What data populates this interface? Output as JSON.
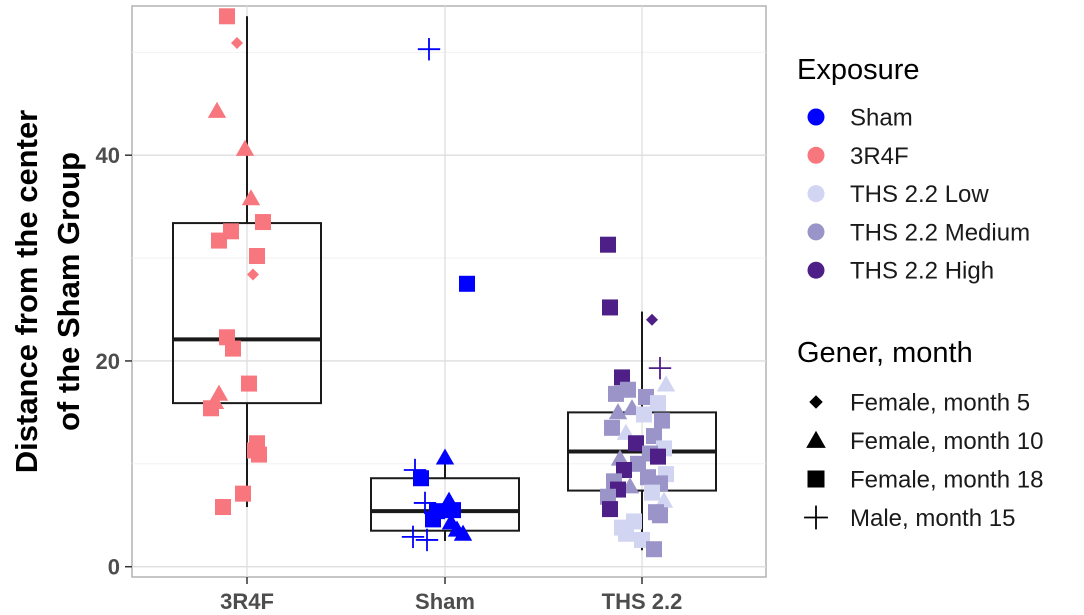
{
  "chart_data": {
    "type": "box",
    "ylabel_lines": [
      "Distance from the center",
      "of the Sham Group"
    ],
    "xlabel": "",
    "ylim": [
      -1,
      54.5
    ],
    "yticks": [
      0,
      20,
      40
    ],
    "grid": true,
    "categories": [
      "3R4F",
      "Sham",
      "THS 2.2"
    ],
    "boxes": [
      {
        "category": "3R4F",
        "q1": 15.9,
        "median": 22.1,
        "q3": 33.4,
        "whisker_low": 5.8,
        "whisker_high": 53.5
      },
      {
        "category": "Sham",
        "q1": 3.5,
        "median": 5.4,
        "q3": 8.6,
        "whisker_low": 2.5,
        "whisker_high": 10.6
      },
      {
        "category": "THS 2.2",
        "q1": 7.4,
        "median": 11.2,
        "q3": 15.0,
        "whisker_low": 1.6,
        "whisker_high": 24.8
      }
    ],
    "exposure_legend": {
      "title": "Exposure",
      "items": [
        {
          "label": "Sham",
          "color": "#0000ff"
        },
        {
          "label": "3R4F",
          "color": "#f8767d"
        },
        {
          "label": "THS 2.2 Low",
          "color": "#d2d5f1"
        },
        {
          "label": "THS 2.2 Medium",
          "color": "#9a94c8"
        },
        {
          "label": "THS 2.2 High",
          "color": "#4e1f86"
        }
      ]
    },
    "shape_legend": {
      "title": "Gener, month",
      "items": [
        {
          "label": "Female, month 5",
          "shape": "diamond"
        },
        {
          "label": "Female, month 10",
          "shape": "triangle"
        },
        {
          "label": "Female, month 18",
          "shape": "square"
        },
        {
          "label": "Male, month 15",
          "shape": "plus"
        }
      ]
    },
    "points": [
      {
        "cat": 0,
        "jitter": -0.1,
        "y": 53.5,
        "exposure": "3R4F",
        "shape": "square"
      },
      {
        "cat": 0,
        "jitter": -0.05,
        "y": 50.9,
        "exposure": "3R4F",
        "shape": "diamond"
      },
      {
        "cat": 0,
        "jitter": -0.15,
        "y": 44.3,
        "exposure": "3R4F",
        "shape": "triangle"
      },
      {
        "cat": 0,
        "jitter": -0.01,
        "y": 40.6,
        "exposure": "3R4F",
        "shape": "triangle"
      },
      {
        "cat": 0,
        "jitter": 0.02,
        "y": 35.8,
        "exposure": "3R4F",
        "shape": "triangle"
      },
      {
        "cat": 0,
        "jitter": 0.08,
        "y": 33.5,
        "exposure": "3R4F",
        "shape": "square"
      },
      {
        "cat": 0,
        "jitter": -0.08,
        "y": 32.6,
        "exposure": "3R4F",
        "shape": "square"
      },
      {
        "cat": 0,
        "jitter": -0.14,
        "y": 31.7,
        "exposure": "3R4F",
        "shape": "square"
      },
      {
        "cat": 0,
        "jitter": 0.05,
        "y": 30.2,
        "exposure": "3R4F",
        "shape": "square"
      },
      {
        "cat": 0,
        "jitter": 0.03,
        "y": 28.4,
        "exposure": "3R4F",
        "shape": "diamond"
      },
      {
        "cat": 0,
        "jitter": -0.1,
        "y": 22.3,
        "exposure": "3R4F",
        "shape": "square"
      },
      {
        "cat": 0,
        "jitter": -0.07,
        "y": 21.2,
        "exposure": "3R4F",
        "shape": "square"
      },
      {
        "cat": 0,
        "jitter": 0.01,
        "y": 17.8,
        "exposure": "3R4F",
        "shape": "square"
      },
      {
        "cat": 0,
        "jitter": -0.14,
        "y": 16.8,
        "exposure": "3R4F",
        "shape": "triangle"
      },
      {
        "cat": 0,
        "jitter": -0.16,
        "y": 16.0,
        "exposure": "3R4F",
        "shape": "triangle"
      },
      {
        "cat": 0,
        "jitter": -0.18,
        "y": 15.4,
        "exposure": "3R4F",
        "shape": "square"
      },
      {
        "cat": 0,
        "jitter": 0.05,
        "y": 12.0,
        "exposure": "3R4F",
        "shape": "square"
      },
      {
        "cat": 0,
        "jitter": 0.04,
        "y": 11.3,
        "exposure": "3R4F",
        "shape": "square"
      },
      {
        "cat": 0,
        "jitter": 0.06,
        "y": 10.9,
        "exposure": "3R4F",
        "shape": "square"
      },
      {
        "cat": 0,
        "jitter": -0.02,
        "y": 7.1,
        "exposure": "3R4F",
        "shape": "square"
      },
      {
        "cat": 0,
        "jitter": -0.12,
        "y": 5.8,
        "exposure": "3R4F",
        "shape": "square"
      },
      {
        "cat": 1,
        "jitter": -0.08,
        "y": 50.3,
        "exposure": "Sham",
        "shape": "plus"
      },
      {
        "cat": 1,
        "jitter": 0.11,
        "y": 27.5,
        "exposure": "Sham",
        "shape": "square"
      },
      {
        "cat": 1,
        "jitter": 0.0,
        "y": 10.6,
        "exposure": "Sham",
        "shape": "triangle"
      },
      {
        "cat": 1,
        "jitter": -0.15,
        "y": 9.4,
        "exposure": "Sham",
        "shape": "plus"
      },
      {
        "cat": 1,
        "jitter": -0.12,
        "y": 8.6,
        "exposure": "Sham",
        "shape": "square"
      },
      {
        "cat": 1,
        "jitter": -0.1,
        "y": 6.2,
        "exposure": "Sham",
        "shape": "plus"
      },
      {
        "cat": 1,
        "jitter": 0.02,
        "y": 6.4,
        "exposure": "Sham",
        "shape": "triangle"
      },
      {
        "cat": 1,
        "jitter": -0.04,
        "y": 5.4,
        "exposure": "Sham",
        "shape": "square"
      },
      {
        "cat": 1,
        "jitter": 0.04,
        "y": 5.5,
        "exposure": "Sham",
        "shape": "square"
      },
      {
        "cat": 1,
        "jitter": -0.06,
        "y": 4.6,
        "exposure": "Sham",
        "shape": "square"
      },
      {
        "cat": 1,
        "jitter": 0.03,
        "y": 4.3,
        "exposure": "Sham",
        "shape": "triangle"
      },
      {
        "cat": 1,
        "jitter": 0.06,
        "y": 3.6,
        "exposure": "Sham",
        "shape": "triangle"
      },
      {
        "cat": 1,
        "jitter": 0.09,
        "y": 3.2,
        "exposure": "Sham",
        "shape": "triangle"
      },
      {
        "cat": 1,
        "jitter": -0.16,
        "y": 2.9,
        "exposure": "Sham",
        "shape": "plus"
      },
      {
        "cat": 1,
        "jitter": -0.09,
        "y": 2.6,
        "exposure": "Sham",
        "shape": "plus"
      },
      {
        "cat": 2,
        "jitter": -0.17,
        "y": 31.3,
        "exposure": "THS 2.2 High",
        "shape": "square"
      },
      {
        "cat": 2,
        "jitter": -0.16,
        "y": 25.2,
        "exposure": "THS 2.2 High",
        "shape": "square"
      },
      {
        "cat": 2,
        "jitter": 0.05,
        "y": 24.0,
        "exposure": "THS 2.2 High",
        "shape": "diamond"
      },
      {
        "cat": 2,
        "jitter": 0.09,
        "y": 19.3,
        "exposure": "THS 2.2 High",
        "shape": "plus"
      },
      {
        "cat": 2,
        "jitter": -0.1,
        "y": 18.4,
        "exposure": "THS 2.2 High",
        "shape": "square"
      },
      {
        "cat": 2,
        "jitter": 0.12,
        "y": 17.7,
        "exposure": "THS 2.2 Low",
        "shape": "triangle"
      },
      {
        "cat": 2,
        "jitter": -0.07,
        "y": 17.2,
        "exposure": "THS 2.2 Medium",
        "shape": "square"
      },
      {
        "cat": 2,
        "jitter": -0.13,
        "y": 16.8,
        "exposure": "THS 2.2 Medium",
        "shape": "square"
      },
      {
        "cat": 2,
        "jitter": 0.02,
        "y": 16.5,
        "exposure": "THS 2.2 Medium",
        "shape": "square"
      },
      {
        "cat": 2,
        "jitter": 0.08,
        "y": 15.9,
        "exposure": "THS 2.2 Low",
        "shape": "square"
      },
      {
        "cat": 2,
        "jitter": -0.05,
        "y": 15.4,
        "exposure": "THS 2.2 Medium",
        "shape": "triangle"
      },
      {
        "cat": 2,
        "jitter": -0.12,
        "y": 15.0,
        "exposure": "THS 2.2 Medium",
        "shape": "triangle"
      },
      {
        "cat": 2,
        "jitter": 0.01,
        "y": 14.8,
        "exposure": "THS 2.2 Low",
        "shape": "square"
      },
      {
        "cat": 2,
        "jitter": 0.1,
        "y": 14.2,
        "exposure": "THS 2.2 Medium",
        "shape": "square"
      },
      {
        "cat": 2,
        "jitter": -0.15,
        "y": 13.5,
        "exposure": "THS 2.2 Medium",
        "shape": "square"
      },
      {
        "cat": 2,
        "jitter": -0.08,
        "y": 13.0,
        "exposure": "THS 2.2 Low",
        "shape": "triangle"
      },
      {
        "cat": 2,
        "jitter": 0.06,
        "y": 12.7,
        "exposure": "THS 2.2 Medium",
        "shape": "square"
      },
      {
        "cat": 2,
        "jitter": -0.03,
        "y": 12.0,
        "exposure": "THS 2.2 High",
        "shape": "square"
      },
      {
        "cat": 2,
        "jitter": 0.11,
        "y": 11.5,
        "exposure": "THS 2.2 Low",
        "shape": "square"
      },
      {
        "cat": 2,
        "jitter": 0.04,
        "y": 11.0,
        "exposure": "THS 2.2 Medium",
        "shape": "square"
      },
      {
        "cat": 2,
        "jitter": -0.11,
        "y": 10.5,
        "exposure": "THS 2.2 Medium",
        "shape": "triangle"
      },
      {
        "cat": 2,
        "jitter": 0.08,
        "y": 10.7,
        "exposure": "THS 2.2 High",
        "shape": "square"
      },
      {
        "cat": 2,
        "jitter": -0.02,
        "y": 10.0,
        "exposure": "THS 2.2 Medium",
        "shape": "square"
      },
      {
        "cat": 2,
        "jitter": -0.09,
        "y": 9.4,
        "exposure": "THS 2.2 High",
        "shape": "square"
      },
      {
        "cat": 2,
        "jitter": 0.12,
        "y": 9.0,
        "exposure": "THS 2.2 Low",
        "shape": "square"
      },
      {
        "cat": 2,
        "jitter": 0.03,
        "y": 8.7,
        "exposure": "THS 2.2 Medium",
        "shape": "square"
      },
      {
        "cat": 2,
        "jitter": -0.14,
        "y": 8.3,
        "exposure": "THS 2.2 Medium",
        "shape": "square"
      },
      {
        "cat": 2,
        "jitter": 0.09,
        "y": 8.1,
        "exposure": "THS 2.2 Medium",
        "shape": "square"
      },
      {
        "cat": 2,
        "jitter": -0.06,
        "y": 7.8,
        "exposure": "THS 2.2 Medium",
        "shape": "triangle"
      },
      {
        "cat": 2,
        "jitter": -0.12,
        "y": 7.5,
        "exposure": "THS 2.2 High",
        "shape": "square"
      },
      {
        "cat": 2,
        "jitter": 0.05,
        "y": 7.2,
        "exposure": "THS 2.2 Low",
        "shape": "square"
      },
      {
        "cat": 2,
        "jitter": -0.17,
        "y": 6.8,
        "exposure": "THS 2.2 Medium",
        "shape": "square"
      },
      {
        "cat": 2,
        "jitter": 0.11,
        "y": 6.4,
        "exposure": "THS 2.2 Low",
        "shape": "triangle"
      },
      {
        "cat": 2,
        "jitter": -0.16,
        "y": 5.6,
        "exposure": "THS 2.2 High",
        "shape": "square"
      },
      {
        "cat": 2,
        "jitter": 0.07,
        "y": 5.3,
        "exposure": "THS 2.2 Medium",
        "shape": "square"
      },
      {
        "cat": 2,
        "jitter": 0.09,
        "y": 5.0,
        "exposure": "THS 2.2 Medium",
        "shape": "square"
      },
      {
        "cat": 2,
        "jitter": -0.04,
        "y": 4.4,
        "exposure": "THS 2.2 Low",
        "shape": "square"
      },
      {
        "cat": 2,
        "jitter": -0.1,
        "y": 3.8,
        "exposure": "THS 2.2 Low",
        "shape": "square"
      },
      {
        "cat": 2,
        "jitter": -0.08,
        "y": 3.2,
        "exposure": "THS 2.2 Low",
        "shape": "square"
      },
      {
        "cat": 2,
        "jitter": 0.0,
        "y": 2.6,
        "exposure": "THS 2.2 Low",
        "shape": "square"
      },
      {
        "cat": 2,
        "jitter": 0.06,
        "y": 1.7,
        "exposure": "THS 2.2 Medium",
        "shape": "square"
      }
    ]
  }
}
